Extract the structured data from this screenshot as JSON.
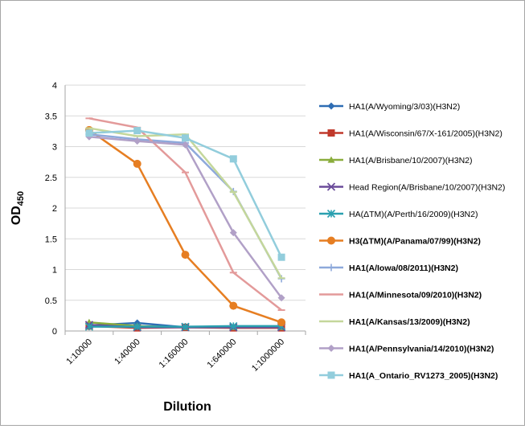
{
  "chart_data": {
    "type": "line",
    "title": "",
    "xlabel": "Dilution",
    "ylabel": "OD",
    "ylabel_sub": "450",
    "ylim": [
      0,
      4
    ],
    "yticks": [
      "0",
      "0.5",
      "1",
      "1.5",
      "2",
      "2.5",
      "3",
      "3.5",
      "4"
    ],
    "grid": "horizontal",
    "legend_position": "right",
    "categories": [
      "1:10000",
      "1:40000",
      "1:160000",
      "1:640000",
      "1:1000000"
    ],
    "series": [
      {
        "name": "HA1(A/Wyoming/3/03)(H3N2)",
        "color": "#2e6db4",
        "marker": "diamond",
        "values": [
          0.09,
          0.13,
          0.06,
          0.06,
          0.06
        ]
      },
      {
        "name": "HA1(A/Wisconsin/67/X-161/2005)(H3N2)",
        "color": "#c0392b",
        "marker": "square",
        "values": [
          0.08,
          0.05,
          0.06,
          0.05,
          0.05
        ]
      },
      {
        "name": "HA1(A/Brisbane/10/2007)(H3N2)",
        "color": "#8aad3c",
        "marker": "triangle",
        "values": [
          0.14,
          0.08,
          0.06,
          0.06,
          0.06
        ]
      },
      {
        "name": "Head Region(A/Brisbane/10/2007)(H3N2)",
        "color": "#6b4c9a",
        "marker": "x",
        "values": [
          0.1,
          0.06,
          0.06,
          0.06,
          0.06
        ]
      },
      {
        "name": "HA(ΔTM)(A/Perth/16/2009)(H3N2)",
        "color": "#2aa0b0",
        "marker": "star",
        "values": [
          0.07,
          0.07,
          0.07,
          0.08,
          0.08
        ]
      },
      {
        "name": "H3(ΔTM)(A/Panama/07/99)(H3N2)",
        "color": "#e67e22",
        "marker": "circle",
        "bold": true,
        "values": [
          3.27,
          2.72,
          1.24,
          0.41,
          0.14
        ]
      },
      {
        "name": "HA1(A/Iowa/08/2011)(H3N2)",
        "color": "#8ea9db",
        "marker": "plus",
        "bold": true,
        "values": [
          3.2,
          3.12,
          3.06,
          2.27,
          0.85
        ]
      },
      {
        "name": "HA1(A/Minnesota/09/2010)(H3N2)",
        "color": "#e39a9a",
        "marker": "dash",
        "bold": true,
        "values": [
          3.46,
          3.31,
          2.58,
          0.95,
          0.34
        ]
      },
      {
        "name": "HA1(A/Kansas/13/2009)(H3N2)",
        "color": "#c4d79b",
        "marker": "dash",
        "bold": true,
        "values": [
          3.3,
          3.17,
          3.2,
          2.26,
          0.86
        ]
      },
      {
        "name": "HA1(A/Pennsylvania/14/2010)(H3N2)",
        "color": "#b1a0c7",
        "marker": "diamond",
        "bold": true,
        "values": [
          3.16,
          3.09,
          3.03,
          1.6,
          0.54
        ]
      },
      {
        "name": "HA1(A_Ontario_RV1273_2005)(H3N2)",
        "color": "#92cddc",
        "marker": "square",
        "bold": true,
        "values": [
          3.22,
          3.26,
          3.14,
          2.8,
          1.2
        ]
      }
    ]
  }
}
